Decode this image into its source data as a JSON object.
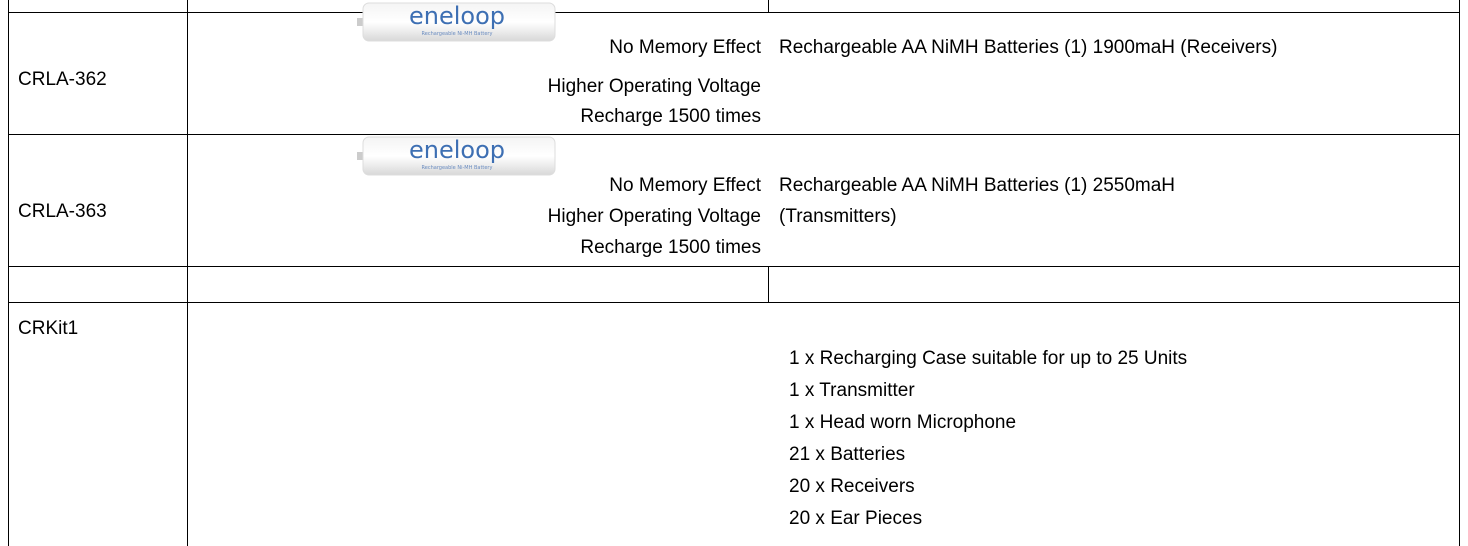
{
  "table": {
    "rows": [
      {
        "code": "CRLA-362",
        "image": {
          "brand": "eneloop",
          "caption": "Rechargeable Ni-MH Battery"
        },
        "features": [
          "No Memory Effect",
          "Higher Operating Voltage",
          "Recharge 1500 times"
        ],
        "description": [
          "Rechargeable AA NiMH Batteries (1) 1900maH (Receivers)"
        ]
      },
      {
        "code": "CRLA-363",
        "image": {
          "brand": "eneloop",
          "caption": "Rechargeable Ni-MH Battery"
        },
        "features": [
          "No Memory Effect",
          "Higher Operating Voltage",
          "Recharge 1500 times"
        ],
        "description": [
          "Rechargeable AA NiMH Batteries (1) 2550maH",
          "(Transmitters)"
        ]
      },
      {
        "code": "CRKit1",
        "description": [
          "1 x Recharging Case suitable for up to 25 Units",
          "1 x Transmitter",
          "1 x Head worn Microphone",
          "21 x Batteries",
          "20 x Receivers",
          "20 x Ear Pieces"
        ]
      }
    ]
  }
}
